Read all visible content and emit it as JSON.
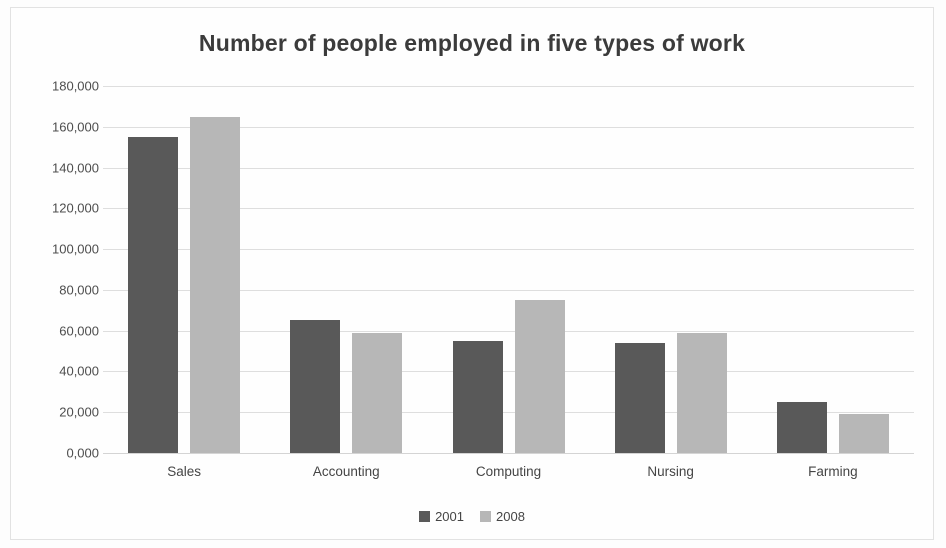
{
  "chart_data": {
    "type": "bar",
    "title": "Number of people employed in five types of work",
    "categories": [
      "Sales",
      "Accounting",
      "Computing",
      "Nursing",
      "Farming"
    ],
    "series": [
      {
        "name": "2001",
        "color": "#595959",
        "values": [
          155000,
          65000,
          55000,
          54000,
          25000
        ]
      },
      {
        "name": "2008",
        "color": "#b7b7b7",
        "values": [
          165000,
          59000,
          75000,
          59000,
          19000
        ]
      }
    ],
    "xlabel": "",
    "ylabel": "",
    "ylim": [
      0,
      180000
    ],
    "ytick_step": 20000,
    "ytick_labels": [
      "0,000",
      "20,000",
      "40,000",
      "60,000",
      "80,000",
      "100,000",
      "120,000",
      "140,000",
      "160,000",
      "180,000"
    ],
    "grid": true,
    "legend_position": "bottom"
  },
  "colors": {
    "series_2001": "#595959",
    "series_2008": "#b7b7b7",
    "gridline": "#dedede",
    "title_text": "#3b3b3b",
    "axis_text": "#4d4d4d",
    "frame_border": "#e2e2e2"
  }
}
